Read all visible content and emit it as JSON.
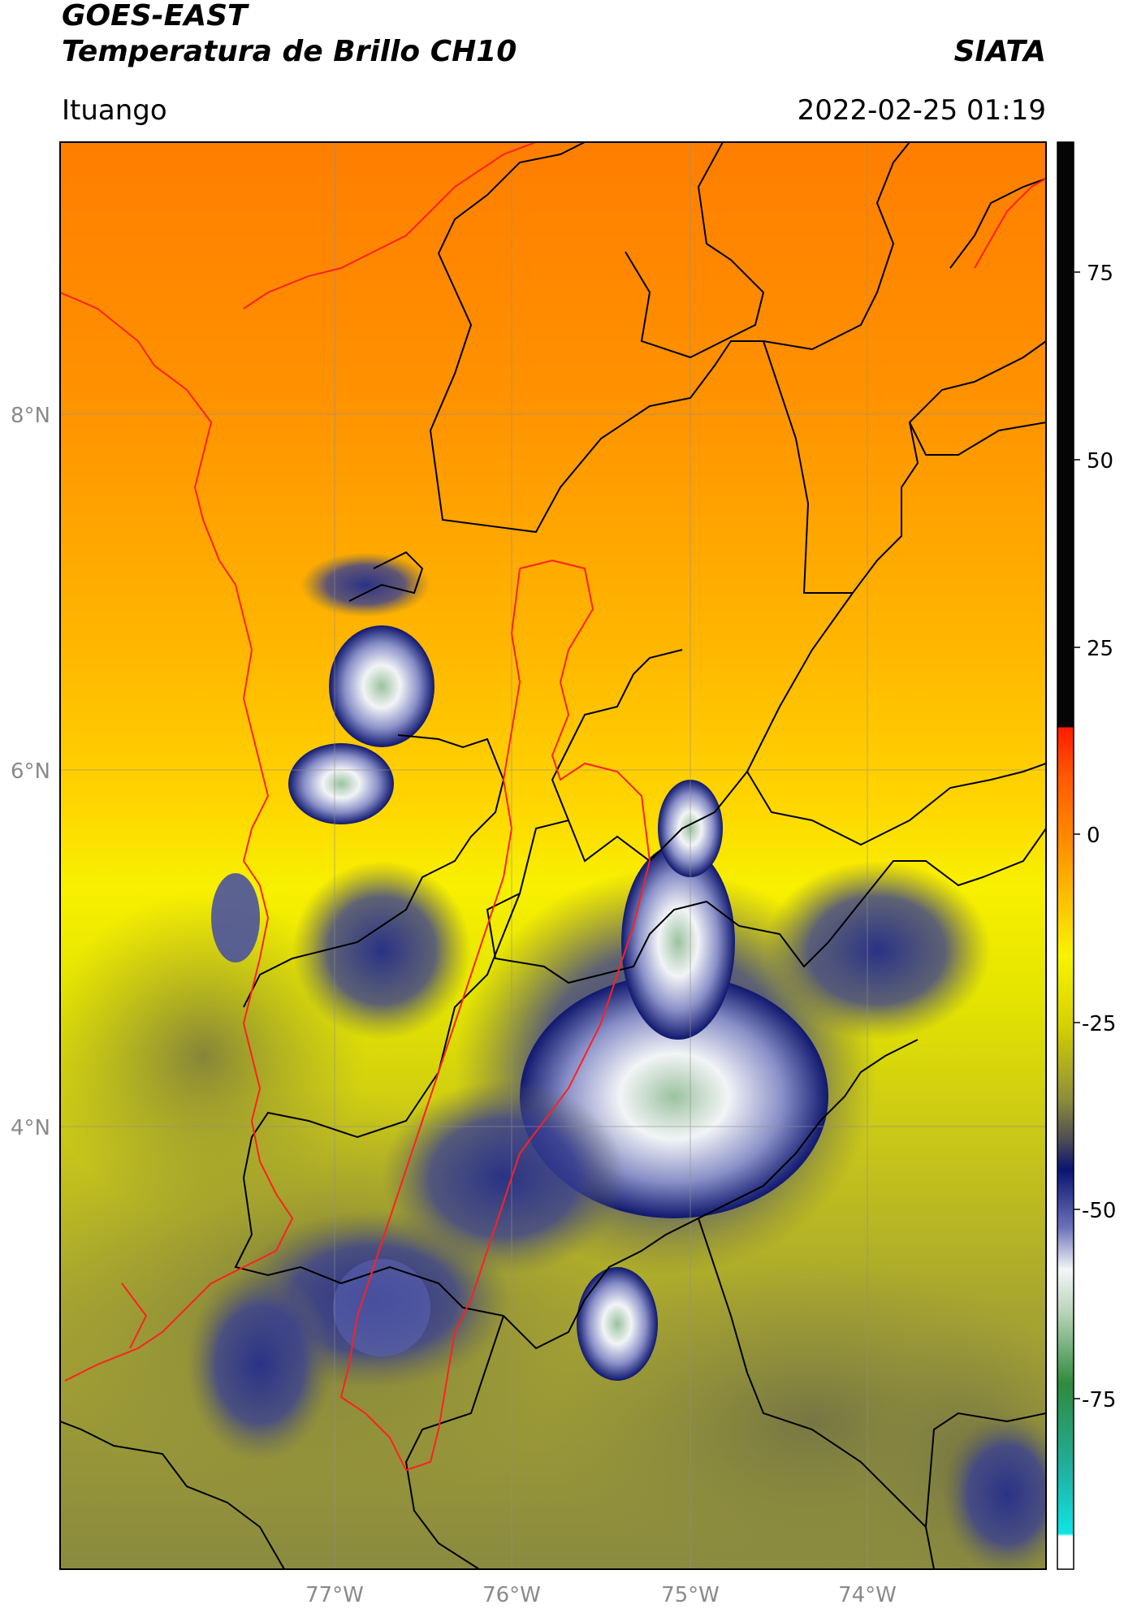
{
  "header": {
    "satellite": "GOES-EAST",
    "product": "Temperatura de Brillo CH10",
    "organization": "SIATA",
    "region": "Ituango",
    "timestamp": "2022-02-25 01:19"
  },
  "map": {
    "lat_labels": [
      "8°N",
      "6°N",
      "4°N"
    ],
    "lon_labels": [
      "77°W",
      "76°W",
      "75°W",
      "74°W"
    ],
    "border_colors": {
      "admin": "#000000",
      "basin": "#ff2020"
    }
  },
  "colorbar": {
    "ticks": [
      "75",
      "50",
      "25",
      "0",
      "-25",
      "-50",
      "-75"
    ],
    "colors": {
      "top_black": "#050505",
      "red": "#ff1a00",
      "orange": "#ff8c00",
      "yellow": "#f8f400",
      "olive": "#8f8f3a",
      "navy": "#0a1470",
      "white": "#f4f6f8",
      "green": "#2f8a3c",
      "cyan": "#10e4e4"
    }
  }
}
